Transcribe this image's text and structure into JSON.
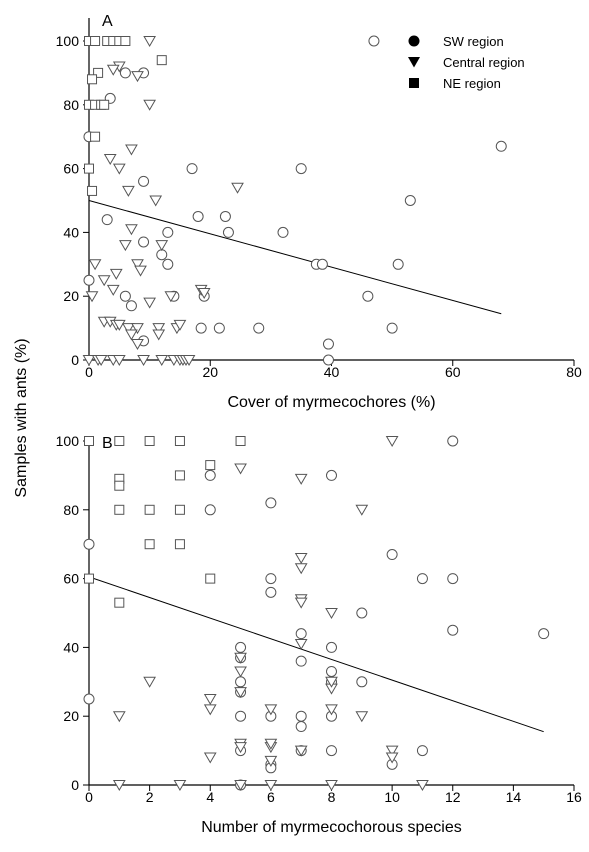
{
  "figure": {
    "shared_ylabel": "Samples with ants (%)"
  },
  "legend": {
    "entries": [
      {
        "key": "SW",
        "label": "SW region",
        "marker": "circle"
      },
      {
        "key": "Central",
        "label": "Central region",
        "marker": "triangle-down"
      },
      {
        "key": "NE",
        "label": "NE region",
        "marker": "square"
      }
    ]
  },
  "chart_data": [
    {
      "panel": "A",
      "type": "scatter",
      "title": "",
      "xlabel": "Cover of myrmecochores (%)",
      "ylabel": "Samples with ants (%)",
      "xlim": [
        0,
        80
      ],
      "ylim": [
        0,
        100
      ],
      "xticks": [
        0,
        20,
        40,
        60,
        80
      ],
      "yticks": [
        0,
        20,
        40,
        60,
        80,
        100
      ],
      "grid": false,
      "legend_position": "top-right",
      "regression_line": {
        "x": [
          0,
          68
        ],
        "y": [
          50,
          14.5
        ]
      },
      "series": [
        {
          "name": "SW region",
          "marker": "circle",
          "points": [
            [
              47,
              100
            ],
            [
              9,
              90
            ],
            [
              6,
              90
            ],
            [
              3.5,
              82
            ],
            [
              0,
              70
            ],
            [
              68,
              67
            ],
            [
              17,
              60
            ],
            [
              35,
              60
            ],
            [
              9,
              56
            ],
            [
              53,
              50
            ],
            [
              18,
              45
            ],
            [
              22.5,
              45
            ],
            [
              3,
              44
            ],
            [
              13,
              40
            ],
            [
              23,
              40
            ],
            [
              32,
              40
            ],
            [
              9,
              37
            ],
            [
              12,
              33
            ],
            [
              13,
              30
            ],
            [
              37.5,
              30
            ],
            [
              38.5,
              30
            ],
            [
              51,
              30
            ],
            [
              0,
              25
            ],
            [
              6,
              20
            ],
            [
              14,
              20
            ],
            [
              19,
              20
            ],
            [
              46,
              20
            ],
            [
              7,
              17
            ],
            [
              18.5,
              10
            ],
            [
              21.5,
              10
            ],
            [
              28,
              10
            ],
            [
              50,
              10
            ],
            [
              9,
              6
            ],
            [
              39.5,
              5
            ],
            [
              39.5,
              0
            ]
          ]
        },
        {
          "name": "Central region",
          "marker": "triangle-down",
          "points": [
            [
              10,
              100
            ],
            [
              5,
              92
            ],
            [
              4,
              91
            ],
            [
              8,
              89
            ],
            [
              10,
              80
            ],
            [
              7,
              66
            ],
            [
              3.5,
              63
            ],
            [
              5,
              60
            ],
            [
              24.5,
              54
            ],
            [
              6.5,
              53
            ],
            [
              11,
              50
            ],
            [
              7,
              41
            ],
            [
              6,
              36
            ],
            [
              12,
              36
            ],
            [
              4.5,
              27
            ],
            [
              8,
              30
            ],
            [
              1,
              30
            ],
            [
              8.5,
              28
            ],
            [
              2.5,
              25
            ],
            [
              4,
              22
            ],
            [
              18.5,
              22
            ],
            [
              19,
              21
            ],
            [
              0.5,
              20
            ],
            [
              13.5,
              20
            ],
            [
              10,
              18
            ],
            [
              2.5,
              12
            ],
            [
              3.5,
              12
            ],
            [
              4.5,
              11
            ],
            [
              5,
              11
            ],
            [
              6.5,
              10
            ],
            [
              8,
              10
            ],
            [
              11.5,
              10
            ],
            [
              14.5,
              10
            ],
            [
              15,
              11
            ],
            [
              7,
              8
            ],
            [
              11.5,
              8
            ],
            [
              8,
              5
            ],
            [
              0,
              0
            ],
            [
              1.5,
              0
            ],
            [
              2,
              0
            ],
            [
              4,
              0
            ],
            [
              5,
              0
            ],
            [
              9,
              0
            ],
            [
              12,
              0
            ],
            [
              14,
              0
            ],
            [
              15,
              0
            ],
            [
              15.5,
              0
            ],
            [
              16,
              0
            ],
            [
              16.5,
              0
            ]
          ]
        },
        {
          "name": "NE region",
          "marker": "square",
          "points": [
            [
              0,
              100
            ],
            [
              1,
              100
            ],
            [
              3,
              100
            ],
            [
              4,
              100
            ],
            [
              5,
              100
            ],
            [
              6,
              100
            ],
            [
              12,
              94
            ],
            [
              1.5,
              90
            ],
            [
              0.5,
              88
            ],
            [
              0,
              80
            ],
            [
              1,
              80
            ],
            [
              2,
              80
            ],
            [
              2.5,
              80
            ],
            [
              1,
              70
            ],
            [
              0,
              60
            ],
            [
              0.5,
              53
            ]
          ]
        }
      ]
    },
    {
      "panel": "B",
      "type": "scatter",
      "title": "",
      "xlabel": "Number of myrmecochorous species",
      "ylabel": "Samples with ants (%)",
      "xlim": [
        0,
        16
      ],
      "ylim": [
        0,
        100
      ],
      "xticks": [
        0,
        2,
        4,
        6,
        8,
        10,
        12,
        14,
        16
      ],
      "yticks": [
        0,
        20,
        40,
        60,
        80,
        100
      ],
      "grid": false,
      "legend_position": "none",
      "regression_line": {
        "x": [
          0,
          15
        ],
        "y": [
          60.5,
          15.5
        ]
      },
      "series": [
        {
          "name": "SW region",
          "marker": "circle",
          "points": [
            [
              0,
              70
            ],
            [
              0,
              25
            ],
            [
              12,
              100
            ],
            [
              4,
              90
            ],
            [
              8,
              90
            ],
            [
              4,
              80
            ],
            [
              6,
              82
            ],
            [
              10,
              67
            ],
            [
              6,
              60
            ],
            [
              6,
              56
            ],
            [
              11,
              60
            ],
            [
              12,
              60
            ],
            [
              9,
              50
            ],
            [
              12,
              45
            ],
            [
              15,
              44
            ],
            [
              7,
              44
            ],
            [
              7,
              36
            ],
            [
              8,
              40
            ],
            [
              5,
              40
            ],
            [
              5,
              37
            ],
            [
              8,
              33
            ],
            [
              5,
              30
            ],
            [
              8,
              30
            ],
            [
              9,
              30
            ],
            [
              5,
              27
            ],
            [
              6,
              20
            ],
            [
              7,
              20
            ],
            [
              8,
              20
            ],
            [
              7,
              17
            ],
            [
              5,
              20
            ],
            [
              7,
              10
            ],
            [
              8,
              10
            ],
            [
              11,
              10
            ],
            [
              10,
              6
            ],
            [
              6,
              6
            ],
            [
              6,
              5
            ],
            [
              5,
              10
            ],
            [
              5,
              0
            ]
          ]
        },
        {
          "name": "Central region",
          "marker": "triangle-down",
          "points": [
            [
              10,
              100
            ],
            [
              5,
              92
            ],
            [
              7,
              89
            ],
            [
              9,
              80
            ],
            [
              7,
              66
            ],
            [
              7,
              63
            ],
            [
              7,
              54
            ],
            [
              7,
              53
            ],
            [
              8,
              50
            ],
            [
              7,
              41
            ],
            [
              5,
              37
            ],
            [
              5,
              33
            ],
            [
              8,
              28
            ],
            [
              8,
              30
            ],
            [
              2,
              30
            ],
            [
              4,
              25
            ],
            [
              4,
              22
            ],
            [
              5,
              27
            ],
            [
              6,
              22
            ],
            [
              8,
              22
            ],
            [
              9,
              20
            ],
            [
              1,
              20
            ],
            [
              5,
              12
            ],
            [
              5,
              11
            ],
            [
              6,
              11
            ],
            [
              6,
              12
            ],
            [
              7,
              10
            ],
            [
              10,
              10
            ],
            [
              10,
              8
            ],
            [
              4,
              8
            ],
            [
              6,
              7
            ],
            [
              1,
              0
            ],
            [
              3,
              0
            ],
            [
              5,
              0
            ],
            [
              6,
              0
            ],
            [
              8,
              0
            ],
            [
              11,
              0
            ]
          ]
        },
        {
          "name": "NE region",
          "marker": "square",
          "points": [
            [
              0,
              100
            ],
            [
              1,
              100
            ],
            [
              2,
              100
            ],
            [
              3,
              100
            ],
            [
              5,
              100
            ],
            [
              4,
              93
            ],
            [
              3,
              90
            ],
            [
              1,
              89
            ],
            [
              1,
              87
            ],
            [
              1,
              80
            ],
            [
              2,
              80
            ],
            [
              3,
              80
            ],
            [
              2,
              70
            ],
            [
              3,
              70
            ],
            [
              0,
              60
            ],
            [
              4,
              60
            ],
            [
              1,
              53
            ]
          ]
        }
      ]
    }
  ]
}
